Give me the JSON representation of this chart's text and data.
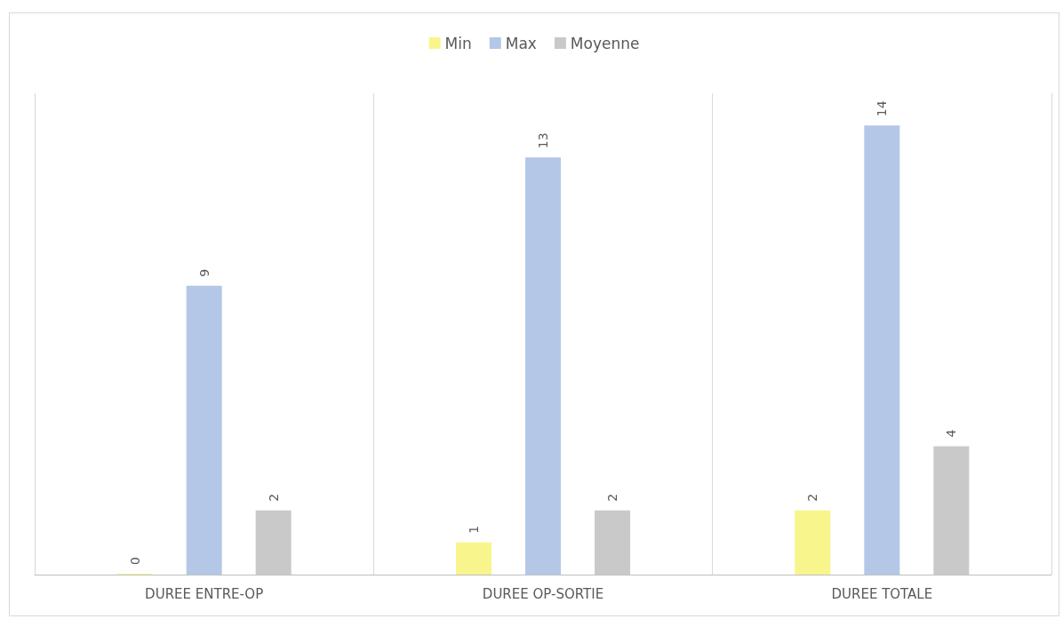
{
  "chart_data": {
    "type": "bar",
    "categories": [
      "DUREE ENTRE-OP",
      "DUREE OP-SORTIE",
      "DUREE TOTALE"
    ],
    "series": [
      {
        "name": "Min",
        "color": "#f8f58c",
        "values": [
          0,
          1,
          2
        ]
      },
      {
        "name": "Max",
        "color": "#b4c7e7",
        "values": [
          9,
          13,
          14
        ]
      },
      {
        "name": "Moyenne",
        "color": "#c9c9c9",
        "values": [
          2,
          2,
          4
        ]
      }
    ],
    "data_labels": true,
    "legend": "top",
    "grid": "x"
  }
}
